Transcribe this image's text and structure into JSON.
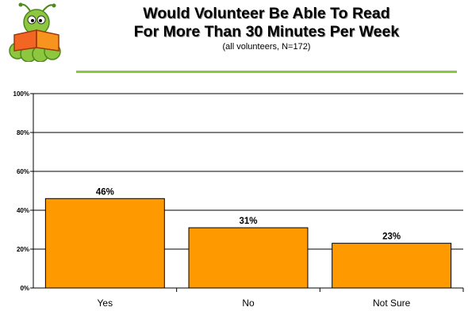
{
  "header": {
    "title_line1": "Would Volunteer Be Able To Read",
    "title_line2": "For More Than 30 Minutes Per Week",
    "subtitle": "(all volunteers, N=172)"
  },
  "colors": {
    "bar": "#FF9900",
    "bar_stroke": "#000000",
    "rule": "#8DC63F",
    "logo_worm": "#8DC63F",
    "logo_book": "#F26522"
  },
  "logo": {
    "icon": "bookworm-reading-icon"
  },
  "chart_data": {
    "type": "bar",
    "categories": [
      "Yes",
      "No",
      "Not Sure"
    ],
    "values": [
      46,
      31,
      23
    ],
    "data_labels": [
      "46%",
      "31%",
      "23%"
    ],
    "ylim": [
      0,
      100
    ],
    "yticks": [
      0,
      20,
      40,
      60,
      80,
      100
    ],
    "ytick_labels": [
      "0%",
      "20%",
      "40%",
      "60%",
      "80%",
      "100%"
    ],
    "grid": true,
    "title": "Would Volunteer Be Able To Read For More Than 30 Minutes Per Week",
    "subtitle": "(all volunteers, N=172)",
    "xlabel": "",
    "ylabel": ""
  }
}
